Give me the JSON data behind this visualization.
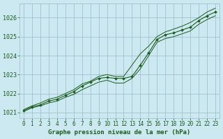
{
  "title": "Graphe pression niveau de la mer (hPa)",
  "bg_color": "#cce8f0",
  "plot_bg_color": "#cce8f0",
  "grid_color": "#99bbcc",
  "line_color": "#1a5c1a",
  "hours": [
    0,
    1,
    2,
    3,
    4,
    5,
    6,
    7,
    8,
    9,
    10,
    11,
    12,
    13,
    14,
    15,
    16,
    17,
    18,
    19,
    20,
    21,
    22,
    23
  ],
  "pressure_main": [
    1021.1,
    1021.3,
    1021.4,
    1021.6,
    1021.7,
    1021.9,
    1022.1,
    1022.4,
    1022.6,
    1022.8,
    1022.85,
    1022.8,
    1022.8,
    1022.9,
    1023.5,
    1024.15,
    1024.85,
    1025.1,
    1025.2,
    1025.35,
    1025.5,
    1025.85,
    1026.1,
    1026.3
  ],
  "pressure_min": [
    1021.05,
    1021.25,
    1021.35,
    1021.5,
    1021.6,
    1021.8,
    1021.95,
    1022.2,
    1022.4,
    1022.6,
    1022.7,
    1022.55,
    1022.55,
    1022.8,
    1023.3,
    1024.0,
    1024.7,
    1024.9,
    1025.0,
    1025.15,
    1025.3,
    1025.65,
    1025.9,
    1026.1
  ],
  "pressure_max": [
    1021.15,
    1021.35,
    1021.5,
    1021.7,
    1021.8,
    1022.0,
    1022.2,
    1022.5,
    1022.65,
    1022.9,
    1023.0,
    1022.9,
    1022.9,
    1023.5,
    1024.1,
    1024.5,
    1025.0,
    1025.25,
    1025.4,
    1025.55,
    1025.75,
    1026.0,
    1026.3,
    1026.5
  ],
  "ylim_lo": 1020.7,
  "ylim_hi": 1026.75,
  "yticks": [
    1021,
    1022,
    1023,
    1024,
    1025,
    1026
  ],
  "xlim_lo": -0.5,
  "xlim_hi": 23.5,
  "xticks": [
    0,
    1,
    2,
    3,
    4,
    5,
    6,
    7,
    8,
    9,
    10,
    11,
    12,
    13,
    14,
    15,
    16,
    17,
    18,
    19,
    20,
    21,
    22,
    23
  ]
}
